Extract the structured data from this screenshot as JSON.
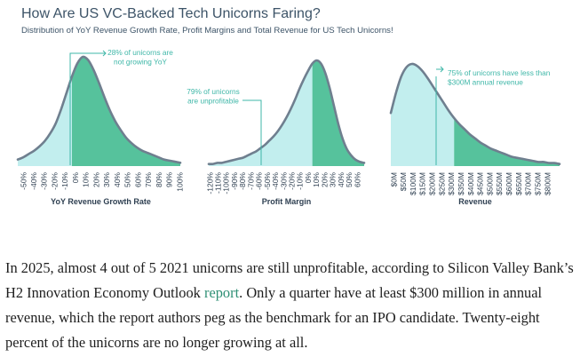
{
  "header": {
    "title": "How Are US VC-Backed Tech Unicorns Faring?",
    "subtitle": "Distribution of YoY Revenue Growth Rate, Profit Margins and Total Revenue for US Tech Unicorns!"
  },
  "colors": {
    "light_fill": "#c2eeee",
    "dark_fill": "#56c29c",
    "curve": "#6f7f8f",
    "annotation": "#3fb7a8",
    "link": "#2e8f74"
  },
  "chart_data": [
    {
      "type": "area",
      "title": "",
      "xlabel": "YoY Revenue Growth Rate",
      "categories": [
        "-50%",
        "-40%",
        "-30%",
        "-20%",
        "-10%",
        "0%",
        "10%",
        "20%",
        "30%",
        "40%",
        "50%",
        "60%",
        "70%",
        "80%",
        "90%",
        "100%"
      ],
      "x": [
        -50,
        -45,
        -40,
        -35,
        -30,
        -25,
        -20,
        -15,
        -10,
        -5,
        0,
        5,
        10,
        15,
        20,
        25,
        30,
        35,
        40,
        45,
        50,
        55,
        60,
        65,
        70,
        75,
        80,
        85,
        90,
        95,
        100
      ],
      "y": [
        6,
        8,
        11,
        14,
        18,
        23,
        30,
        39,
        52,
        67,
        82,
        94,
        100,
        97,
        88,
        76,
        63,
        51,
        41,
        33,
        26,
        21,
        17,
        14,
        12,
        10,
        8,
        6,
        5,
        4,
        3
      ],
      "split_at": 0,
      "annotation": "28% of unicorns are not growing YoY"
    },
    {
      "type": "area",
      "title": "",
      "xlabel": "Profit Margin",
      "categories": [
        "-120%",
        "-110%",
        "-100%",
        "-90%",
        "-80%",
        "-70%",
        "-60%",
        "-50%",
        "-40%",
        "-30%",
        "-20%",
        "-10%",
        "0%",
        "10%",
        "20%",
        "30%",
        "40%",
        "50%",
        "60%"
      ],
      "x": [
        -120,
        -115,
        -110,
        -105,
        -100,
        -95,
        -90,
        -85,
        -80,
        -75,
        -70,
        -65,
        -60,
        -55,
        -50,
        -45,
        -40,
        -35,
        -30,
        -25,
        -20,
        -15,
        -10,
        -5,
        0,
        5,
        10,
        15,
        20,
        25,
        30,
        35,
        40,
        45,
        50,
        55,
        60
      ],
      "y": [
        2,
        2,
        3,
        3,
        4,
        5,
        6,
        7,
        8,
        10,
        12,
        14,
        17,
        20,
        24,
        28,
        33,
        39,
        46,
        54,
        63,
        73,
        82,
        90,
        97,
        100,
        97,
        88,
        74,
        57,
        40,
        26,
        16,
        10,
        6,
        4,
        3
      ],
      "split_at": 0,
      "annotation": "79% of unicorns are unprofitable"
    },
    {
      "type": "area",
      "title": "",
      "xlabel": "Revenue",
      "categories": [
        "$0M",
        "$50M",
        "$100M",
        "$150M",
        "$200M",
        "$250M",
        "$300M",
        "$350M",
        "$400M",
        "$450M",
        "$500M",
        "$550M",
        "$600M",
        "$650M",
        "$700M",
        "$750M",
        "$800M"
      ],
      "x": [
        0,
        25,
        50,
        75,
        100,
        125,
        150,
        175,
        200,
        225,
        250,
        275,
        300,
        325,
        350,
        375,
        400,
        425,
        450,
        475,
        500,
        525,
        550,
        575,
        600,
        625,
        650,
        675,
        700,
        725,
        750,
        775,
        800
      ],
      "y": [
        52,
        72,
        88,
        97,
        100,
        98,
        93,
        86,
        78,
        70,
        62,
        54,
        47,
        41,
        36,
        31,
        27,
        23,
        20,
        17,
        15,
        13,
        11,
        9,
        8,
        7,
        6,
        5,
        4,
        4,
        3,
        3,
        2
      ],
      "split_at": 300,
      "annotation": "75% of unicorns have less than $300M annual revenue"
    }
  ],
  "article": {
    "before": "In 2025, almost 4 out of 5 2021 unicorns are still unprofitable, according to Silicon Valley Bank’s H2 Innovation Economy Outlook ",
    "link": "report",
    "after": ". Only a quarter have at least $300 million in annual revenue, which the report authors peg as the benchmark for an IPO candidate. Twenty-eight percent of the unicorns are no longer growing at all."
  }
}
